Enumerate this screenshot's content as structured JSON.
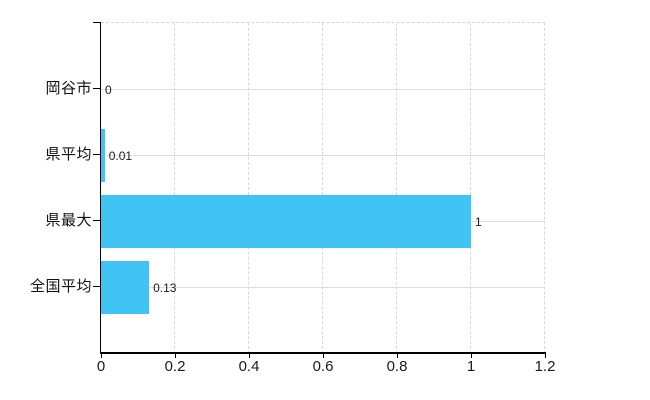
{
  "chart_data": {
    "type": "bar",
    "orientation": "horizontal",
    "title": "",
    "xlabel": "",
    "ylabel": "",
    "categories": [
      "岡谷市",
      "県平均",
      "県最大",
      "全国平均"
    ],
    "values": [
      0,
      0.01,
      1,
      0.13
    ],
    "value_labels": [
      "0",
      "0.01",
      "1",
      "0.13"
    ],
    "x_ticks": [
      0,
      0.2,
      0.4,
      0.6,
      0.8,
      1,
      1.2
    ],
    "x_tick_labels": [
      "0",
      "0.2",
      "0.4",
      "0.6",
      "0.8",
      "1",
      "1.2"
    ],
    "xlim": [
      0,
      1.2
    ],
    "grid": true,
    "legend": false,
    "colors": {
      "bar": "#40C4F4",
      "axis": "#000000",
      "gridline": "#dcdede",
      "gridline_dashed": "#d9d9d9",
      "text": "#1a1a1a",
      "background": "#ffffff"
    }
  }
}
